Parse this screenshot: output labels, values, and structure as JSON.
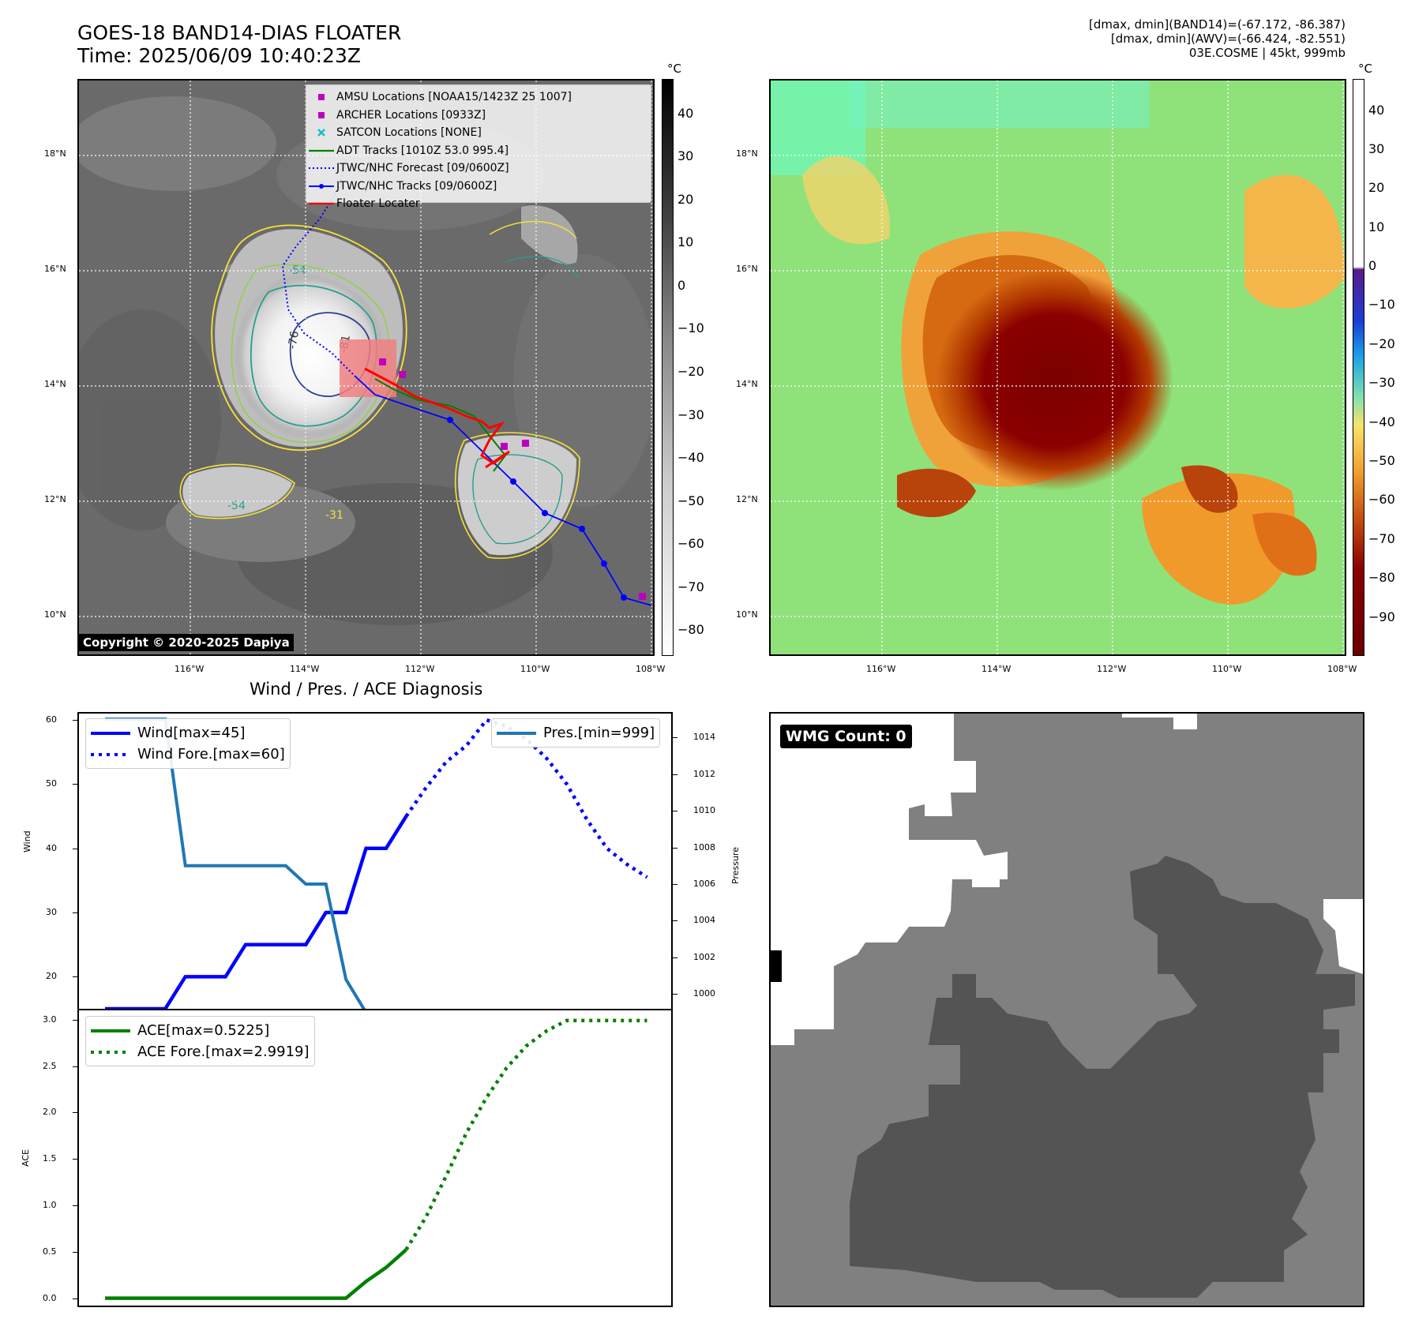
{
  "header": {
    "title_line1": "GOES-18 BAND14-DIAS FLOATER",
    "title_line2": "Time: 2025/06/09 10:40:23Z",
    "right_line1": "[dmax, dmin](BAND14)=(-67.172, -86.387)",
    "right_line2": "[dmax, dmin](AWV)=(-66.424, -82.551)",
    "right_line3": "03E.COSME | 45kt, 999mb"
  },
  "map": {
    "lat_labels": [
      "18°N",
      "16°N",
      "14°N",
      "12°N",
      "10°N"
    ],
    "lon_labels": [
      "116°W",
      "114°W",
      "112°W",
      "110°W",
      "108°W"
    ],
    "copyright": "Copyright © 2020-2025 Dapiya",
    "contour_labels": [
      "-54",
      "-76",
      "-81",
      "-54",
      "-31"
    ],
    "colors": {
      "contour_yellow": "#f7e23a",
      "contour_green": "#8fd14f",
      "contour_teal": "#2a9d8f",
      "contour_navy": "#2b3f8f",
      "floater_box": "#f08080"
    }
  },
  "legend": {
    "items": [
      {
        "label": "AMSU Locations [NOAA15/1423Z 25 1007]",
        "symbol": "square",
        "color": "#bf00bf"
      },
      {
        "label": "ARCHER Locations [0933Z]",
        "symbol": "square",
        "color": "#bf00bf"
      },
      {
        "label": "SATCON Locations [NONE]",
        "symbol": "x",
        "color": "#17becf"
      },
      {
        "label": "ADT Tracks [1010Z 53.0 995.4]",
        "symbol": "line",
        "color": "#008000"
      },
      {
        "label": "JTWC/NHC Forecast [09/0600Z]",
        "symbol": "dotted",
        "color": "#0000ff"
      },
      {
        "label": "JTWC/NHC Tracks [09/0600Z]",
        "symbol": "line-dot",
        "color": "#0000ff"
      },
      {
        "label": "Floater Locater",
        "symbol": "line",
        "color": "#ff0000"
      }
    ]
  },
  "colorbar_gray": {
    "unit": "°C",
    "labels": [
      "40",
      "30",
      "20",
      "10",
      "0",
      "−10",
      "−20",
      "−30",
      "−40",
      "−50",
      "−60",
      "−70",
      "−80"
    ]
  },
  "colorbar_awv": {
    "unit": "°C",
    "labels": [
      "40",
      "30",
      "20",
      "10",
      "0",
      "−10",
      "−20",
      "−30",
      "−40",
      "−50",
      "−60",
      "−70",
      "−80",
      "−90"
    ]
  },
  "wmg": {
    "label": "WMG Count: 0"
  },
  "chart_data": [
    {
      "type": "line",
      "title": "Wind / Pres. / ACE Diagnosis",
      "ylabel": "Wind",
      "ylabel_right": "Pressure",
      "ylim": [
        15,
        61
      ],
      "ylim_right": [
        999.2,
        1015.3
      ],
      "yticks": [
        20,
        30,
        40,
        50,
        60
      ],
      "yticks_right": [
        1000,
        1002,
        1004,
        1006,
        1008,
        1010,
        1012,
        1014
      ],
      "x": [
        0,
        1,
        2,
        3,
        4,
        5,
        6,
        7,
        8,
        9,
        10,
        11,
        12,
        13,
        14,
        15,
        16,
        17,
        18,
        19,
        20,
        21,
        22,
        23,
        24,
        25,
        26,
        27
      ],
      "series": [
        {
          "name": "Wind[max=45]",
          "color": "#0000ff",
          "style": "solid",
          "x": [
            0,
            1,
            2,
            3,
            4,
            5,
            6,
            7,
            8,
            9,
            10,
            11,
            12,
            13,
            14,
            15
          ],
          "values": [
            15,
            15,
            15,
            15,
            20,
            20,
            20,
            25,
            25,
            25,
            25,
            30,
            30,
            40,
            40,
            45
          ]
        },
        {
          "name": "Wind Fore.[max=60]",
          "color": "#0000ff",
          "style": "dotted",
          "x": [
            15,
            16,
            17,
            18,
            19,
            20,
            21,
            22,
            23,
            24,
            25,
            26,
            27
          ],
          "values": [
            45,
            49.5,
            53.5,
            56,
            60,
            59,
            57,
            54,
            50,
            44.5,
            40,
            37.5,
            35.5
          ]
        },
        {
          "name": "Pres.[min=999]",
          "color": "#1f77b4",
          "style": "solid",
          "axis": "right",
          "x": [
            0,
            1,
            2,
            3,
            4,
            5,
            6,
            7,
            8,
            9,
            10,
            11,
            12,
            13,
            14,
            15
          ],
          "values": [
            1015,
            1015,
            1015,
            1015,
            1007,
            1007,
            1007,
            1007,
            1007,
            1007,
            1006,
            1006,
            1000.8,
            999,
            999,
            999
          ]
        }
      ]
    },
    {
      "type": "line",
      "ylabel": "ACE",
      "ylim": [
        -0.08,
        3.1
      ],
      "yticks": [
        "0.0",
        "0.5",
        "1.0",
        "1.5",
        "2.0",
        "2.5",
        "3.0"
      ],
      "series": [
        {
          "name": "ACE[max=0.5225]",
          "color": "#008000",
          "style": "solid",
          "x": [
            0,
            1,
            2,
            3,
            4,
            5,
            6,
            7,
            8,
            9,
            10,
            11,
            12,
            13,
            14,
            15
          ],
          "values": [
            0,
            0,
            0,
            0,
            0,
            0,
            0,
            0,
            0,
            0,
            0,
            0,
            0,
            0.18,
            0.33,
            0.5225
          ]
        },
        {
          "name": "ACE Fore.[max=2.9919]",
          "color": "#008000",
          "style": "dotted",
          "x": [
            15,
            16,
            17,
            18,
            19,
            20,
            21,
            22,
            23,
            24,
            25,
            26,
            27
          ],
          "values": [
            0.5225,
            0.88,
            1.32,
            1.78,
            2.16,
            2.48,
            2.72,
            2.88,
            2.99,
            2.99,
            2.99,
            2.99,
            2.99
          ]
        }
      ]
    }
  ]
}
